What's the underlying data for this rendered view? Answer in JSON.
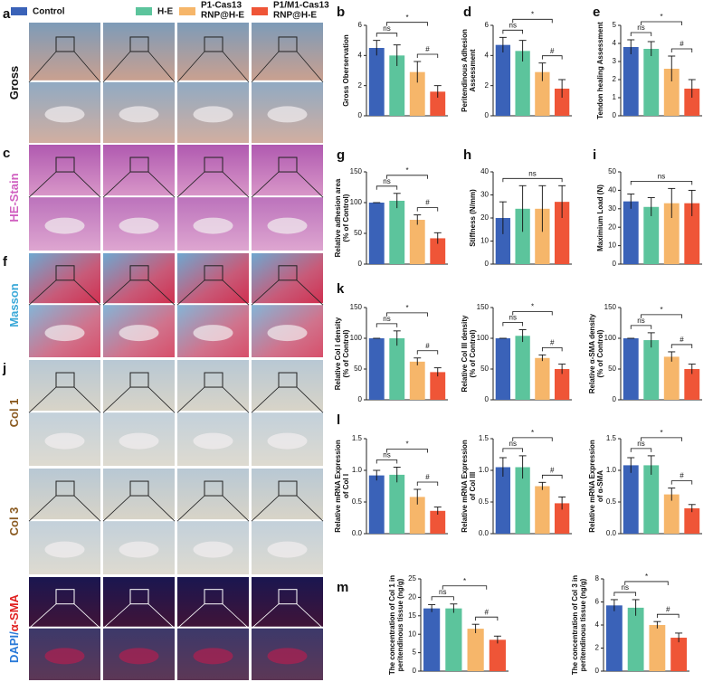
{
  "legend": [
    {
      "name": [
        "Control"
      ],
      "color": "#3a62b8"
    },
    {
      "name": [
        "H-E"
      ],
      "color": "#5cc49c"
    },
    {
      "name": [
        "P1-Cas13",
        "RNP@H-E"
      ],
      "color": "#f6b66a"
    },
    {
      "name": [
        "P1/M1-Cas13",
        "RNP@H-E"
      ],
      "color": "#ef5537"
    }
  ],
  "panel_labels": [
    "a",
    "c",
    "f",
    "j",
    "b",
    "d",
    "e",
    "g",
    "h",
    "i",
    "k",
    "l",
    "m"
  ],
  "row_labels": [
    [
      {
        "text": "Gross",
        "color": "#111111"
      }
    ],
    [
      {
        "text": "HE-Stain",
        "color": "#d060c0"
      }
    ],
    [
      {
        "text": "Masson",
        "color": "#3aa8d8"
      }
    ],
    [
      {
        "text": "Col 1",
        "color": "#8a5a20"
      }
    ],
    [
      {
        "text": "Col 3",
        "color": "#8a5a20"
      }
    ],
    [
      {
        "text": "DAPI/",
        "color": "#2a7ad8"
      },
      {
        "text": "α-SMA",
        "color": "#e02020"
      }
    ]
  ],
  "chart_data": [
    {
      "type": "bar",
      "ylabel": [
        "Gross Oberservation"
      ],
      "values": [
        4.5,
        4.0,
        2.9,
        1.6
      ],
      "errors": [
        0.5,
        0.7,
        0.7,
        0.4
      ],
      "ylim": [
        0,
        6
      ],
      "yticks": [
        0,
        2,
        4,
        6
      ],
      "annotations": [
        "ns",
        "*",
        "#"
      ]
    },
    {
      "type": "bar",
      "ylabel": [
        "Peritendinous Adhesion",
        "Assessment"
      ],
      "values": [
        4.7,
        4.3,
        2.9,
        1.8
      ],
      "errors": [
        0.5,
        0.7,
        0.6,
        0.6
      ],
      "ylim": [
        0,
        6
      ],
      "yticks": [
        0,
        2,
        4,
        6
      ],
      "annotations": [
        "ns",
        "*",
        "#"
      ]
    },
    {
      "type": "bar",
      "ylabel": [
        "Tendon healing Assessment"
      ],
      "values": [
        3.8,
        3.7,
        2.6,
        1.5
      ],
      "errors": [
        0.4,
        0.4,
        0.7,
        0.5
      ],
      "ylim": [
        0,
        5
      ],
      "yticks": [
        0,
        1,
        2,
        3,
        4,
        5
      ],
      "annotations": [
        "ns",
        "*",
        "#"
      ]
    },
    {
      "type": "bar",
      "ylabel": [
        "Relative adhesion area",
        "(% of Control)"
      ],
      "values": [
        100,
        103,
        72,
        42
      ],
      "errors": [
        0,
        12,
        8,
        9
      ],
      "ylim": [
        0,
        150
      ],
      "yticks": [
        0,
        50,
        100,
        150
      ],
      "annotations": [
        "ns",
        "*",
        "#"
      ]
    },
    {
      "type": "bar",
      "ylabel": [
        "Stiffness (N/mm)"
      ],
      "values": [
        20,
        24,
        24,
        27
      ],
      "errors": [
        7,
        10,
        10,
        7
      ],
      "ylim": [
        0,
        40
      ],
      "yticks": [
        0,
        10,
        20,
        30,
        40
      ],
      "annotations": [
        "ns"
      ]
    },
    {
      "type": "bar",
      "ylabel": [
        "Maximium Load (N)"
      ],
      "values": [
        34,
        31,
        33,
        33
      ],
      "errors": [
        4,
        5,
        8,
        7
      ],
      "ylim": [
        0,
        50
      ],
      "yticks": [
        0,
        10,
        20,
        30,
        40,
        50
      ],
      "annotations": [
        "ns"
      ]
    },
    {
      "type": "bar",
      "ylabel": [
        "Relative Col I density",
        "(% of Control)"
      ],
      "values": [
        100,
        100,
        62,
        45
      ],
      "errors": [
        0,
        12,
        6,
        7
      ],
      "ylim": [
        0,
        150
      ],
      "yticks": [
        0,
        50,
        100,
        150
      ],
      "annotations": [
        "ns",
        "*",
        "#"
      ]
    },
    {
      "type": "bar",
      "ylabel": [
        "Relative Col III density",
        "(% of Control)"
      ],
      "values": [
        100,
        104,
        68,
        50
      ],
      "errors": [
        0,
        10,
        5,
        8
      ],
      "ylim": [
        0,
        150
      ],
      "yticks": [
        0,
        50,
        100,
        150
      ],
      "annotations": [
        "ns",
        "*",
        "#"
      ]
    },
    {
      "type": "bar",
      "ylabel": [
        "Relative α-SMA density",
        "(% of Control)"
      ],
      "values": [
        100,
        97,
        70,
        50
      ],
      "errors": [
        0,
        12,
        8,
        8
      ],
      "ylim": [
        0,
        150
      ],
      "yticks": [
        0,
        50,
        100,
        150
      ],
      "annotations": [
        "ns",
        "*",
        "#"
      ]
    },
    {
      "type": "bar",
      "ylabel": [
        "Relative mRNA Expression",
        "of Col I"
      ],
      "values": [
        0.92,
        0.93,
        0.58,
        0.36
      ],
      "errors": [
        0.08,
        0.12,
        0.12,
        0.06
      ],
      "ylim": [
        0,
        1.5
      ],
      "yticks": [
        {
          "value": 0,
          "label": "0.0"
        },
        0.5,
        {
          "value": 1,
          "label": "1.0"
        },
        1.5
      ],
      "annotations": [
        "ns",
        "*",
        "#"
      ]
    },
    {
      "type": "bar",
      "ylabel": [
        "Relative mRNA Expression",
        "of Col III"
      ],
      "values": [
        1.05,
        1.05,
        0.75,
        0.48
      ],
      "errors": [
        0.15,
        0.18,
        0.06,
        0.1
      ],
      "ylim": [
        0,
        1.5
      ],
      "yticks": [
        {
          "value": 0,
          "label": "0.0"
        },
        0.5,
        {
          "value": 1,
          "label": "1.0"
        },
        1.5
      ],
      "annotations": [
        "ns",
        "*",
        "#"
      ]
    },
    {
      "type": "bar",
      "ylabel": [
        "Relative mRNA Expression",
        "of α-SMA"
      ],
      "values": [
        1.08,
        1.08,
        0.62,
        0.4
      ],
      "errors": [
        0.12,
        0.15,
        0.1,
        0.06
      ],
      "ylim": [
        0,
        1.5
      ],
      "yticks": [
        {
          "value": 0,
          "label": "0.0"
        },
        0.5,
        {
          "value": 1,
          "label": "1.0"
        },
        1.5
      ],
      "annotations": [
        "ns",
        "*",
        "#"
      ]
    },
    {
      "type": "bar",
      "ylabel": [
        "The concentration of Col 1 in",
        "peritendinous tissue (ng/g)"
      ],
      "values": [
        17,
        17,
        11.5,
        8.5
      ],
      "errors": [
        1,
        1.2,
        1.2,
        1
      ],
      "ylim": [
        0,
        25
      ],
      "yticks": [
        0,
        5,
        10,
        15,
        20,
        25
      ],
      "annotations": [
        "ns",
        "*",
        "#"
      ]
    },
    {
      "type": "bar",
      "ylabel": [
        "The concentration of Col 3 in",
        "peritendinous tissue (ng/g)"
      ],
      "values": [
        5.7,
        5.5,
        4,
        2.9
      ],
      "errors": [
        0.5,
        0.7,
        0.3,
        0.4
      ],
      "ylim": [
        0,
        8
      ],
      "yticks": [
        0,
        2,
        4,
        6,
        8
      ],
      "annotations": [
        "ns",
        "*",
        "#"
      ]
    }
  ]
}
